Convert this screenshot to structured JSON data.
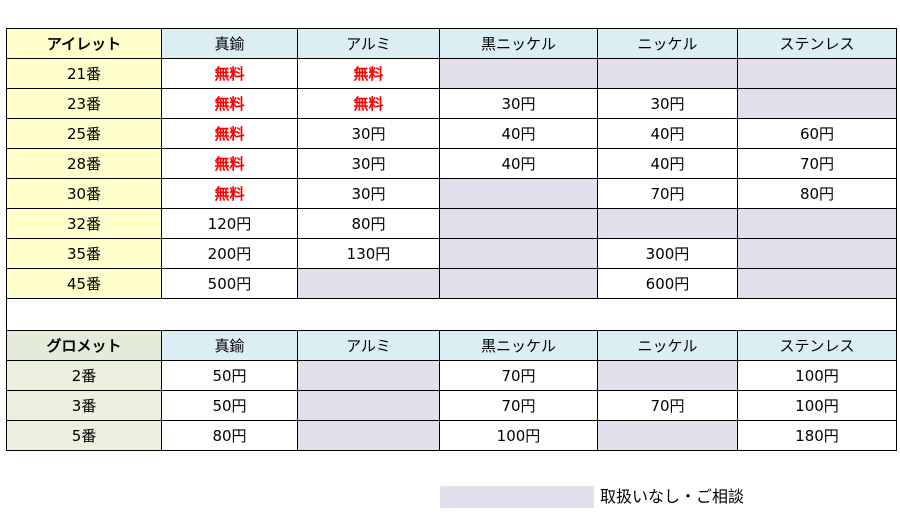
{
  "eyelet": {
    "header": [
      "アイレット",
      "真鍮",
      "アルミ",
      "黒ニッケル",
      "ニッケル",
      "ステンレス"
    ],
    "rows": [
      {
        "size": "21番",
        "cells": [
          "無料",
          "無料",
          "",
          "",
          ""
        ]
      },
      {
        "size": "23番",
        "cells": [
          "無料",
          "無料",
          "30円",
          "30円",
          ""
        ]
      },
      {
        "size": "25番",
        "cells": [
          "無料",
          "30円",
          "40円",
          "40円",
          "60円"
        ]
      },
      {
        "size": "28番",
        "cells": [
          "無料",
          "30円",
          "40円",
          "40円",
          "70円"
        ]
      },
      {
        "size": "30番",
        "cells": [
          "無料",
          "30円",
          "",
          "70円",
          "80円"
        ]
      },
      {
        "size": "32番",
        "cells": [
          "120円",
          "80円",
          "",
          "",
          ""
        ]
      },
      {
        "size": "35番",
        "cells": [
          "200円",
          "130円",
          "",
          "300円",
          ""
        ]
      },
      {
        "size": "45番",
        "cells": [
          "500円",
          "",
          "",
          "600円",
          ""
        ]
      }
    ]
  },
  "grommet": {
    "header": [
      "グロメット",
      "真鍮",
      "アルミ",
      "黒ニッケル",
      "ニッケル",
      "ステンレス"
    ],
    "rows": [
      {
        "size": "2番",
        "cells": [
          "50円",
          "",
          "70円",
          "",
          "100円"
        ]
      },
      {
        "size": "3番",
        "cells": [
          "50円",
          "",
          "70円",
          "70円",
          "100円"
        ]
      },
      {
        "size": "5番",
        "cells": [
          "80円",
          "",
          "100円",
          "",
          "180円"
        ]
      }
    ]
  },
  "legend": {
    "color": "#e4dfec",
    "text": "取扱いなし・ご相談"
  },
  "colors": {
    "free_text": "#ff0000",
    "unavailable": "#e4dfec",
    "eyelet_size_bg": "#ffffcc",
    "grommet_size_bg": "#ebf1de",
    "header_bg": "#dbeef4"
  }
}
